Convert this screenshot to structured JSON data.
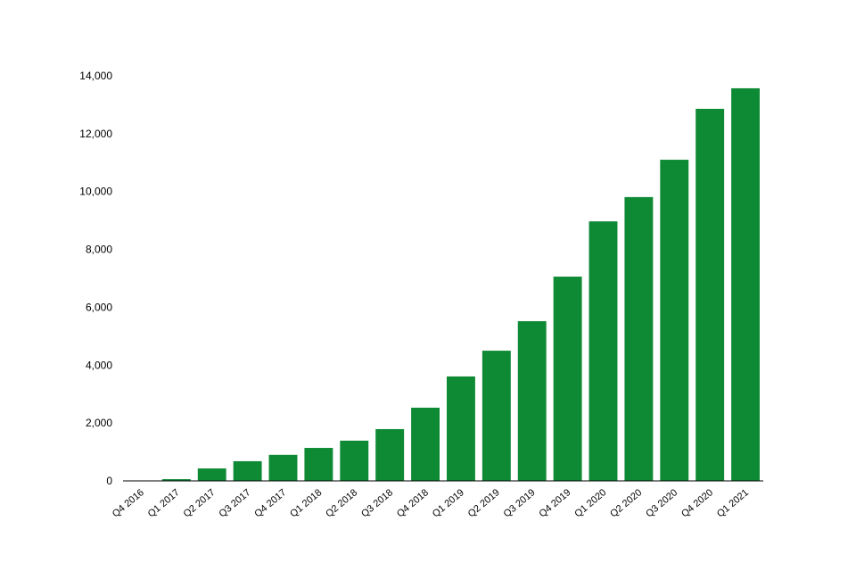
{
  "chart_data": {
    "type": "bar",
    "categories": [
      "Q4 2016",
      "Q1 2017",
      "Q2 2017",
      "Q3 2017",
      "Q4 2017",
      "Q1 2018",
      "Q2 2018",
      "Q3 2018",
      "Q4 2018",
      "Q1 2019",
      "Q2 2019",
      "Q3 2019",
      "Q4 2019",
      "Q1 2020",
      "Q2 2020",
      "Q3 2020",
      "Q4 2020",
      "Q1 2021"
    ],
    "values": [
      10,
      60,
      430,
      680,
      900,
      1140,
      1390,
      1790,
      2530,
      3610,
      4500,
      5520,
      7060,
      8970,
      9810,
      11100,
      12860,
      13570
    ],
    "color": "#0e8a35",
    "ylim": [
      0,
      14000
    ],
    "yticks": [
      0,
      {
        "value": 2000,
        "label": "2,000"
      },
      {
        "value": 4000,
        "label": "4,000"
      },
      {
        "value": 6000,
        "label": "6,000"
      },
      {
        "value": 8000,
        "label": "8,000"
      },
      {
        "value": 10000,
        "label": "10,000"
      },
      {
        "value": 12000,
        "label": "12,000"
      },
      {
        "value": 14000,
        "label": "14,000"
      }
    ],
    "grid": false
  }
}
